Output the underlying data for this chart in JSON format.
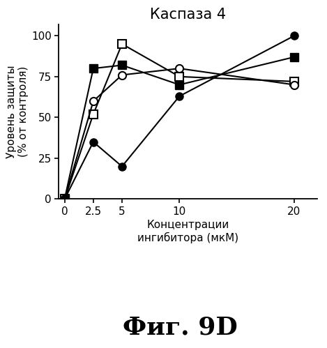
{
  "title": "Каспаза 4",
  "xlabel": "Концентрации\nингибитора (мкМ)",
  "ylabel": "Уровень защиты\n(% от контроля)",
  "caption": "Фиг. 9D",
  "x": [
    0,
    2.5,
    5,
    10,
    20
  ],
  "series": [
    {
      "label": "filled_square",
      "y": [
        0,
        80,
        82,
        70,
        87
      ],
      "marker": "s",
      "filled": true
    },
    {
      "label": "open_square",
      "y": [
        0,
        52,
        95,
        75,
        72
      ],
      "marker": "s",
      "filled": false
    },
    {
      "label": "open_circle",
      "y": [
        0,
        60,
        76,
        80,
        70
      ],
      "marker": "o",
      "filled": false
    },
    {
      "label": "filled_circle",
      "y": [
        0,
        35,
        20,
        63,
        100
      ],
      "marker": "o",
      "filled": true
    }
  ],
  "xlim": [
    -0.5,
    22
  ],
  "ylim": [
    0,
    107
  ],
  "xticks": [
    0,
    2.5,
    5,
    10,
    20
  ],
  "yticks": [
    0,
    25,
    50,
    75,
    100
  ],
  "line_color": "black",
  "marker_size": 8,
  "line_width": 1.5,
  "title_fontsize": 15,
  "label_fontsize": 11,
  "tick_fontsize": 11,
  "caption_fontsize": 26
}
